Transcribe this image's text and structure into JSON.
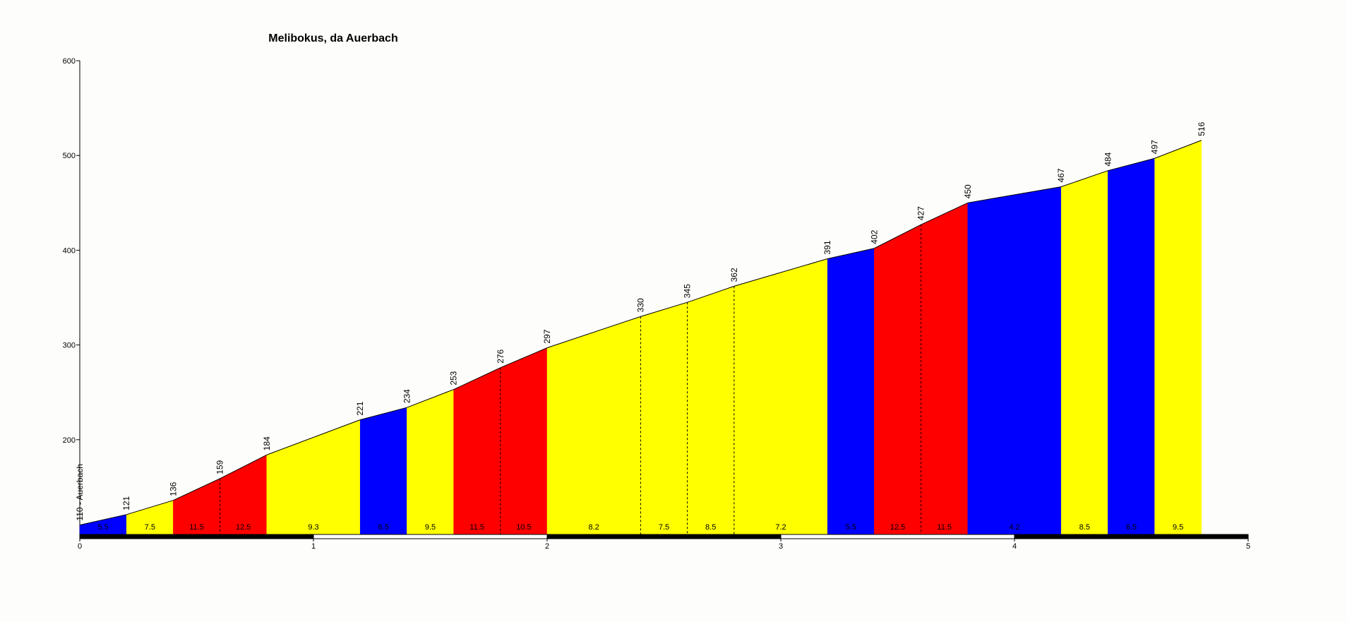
{
  "chart_data": {
    "type": "profile",
    "title": "Melibokus, da Auerbach",
    "x": [
      0,
      0.2,
      0.4,
      0.6,
      0.8,
      1.2,
      1.4,
      1.6,
      1.8,
      2.0,
      2.4,
      2.6,
      2.8,
      3.2,
      3.4,
      3.6,
      3.8,
      4.2,
      4.4,
      4.6,
      4.8
    ],
    "values": [
      110,
      121,
      136,
      159,
      184,
      221,
      234,
      253,
      276,
      297,
      330,
      345,
      362,
      391,
      402,
      427,
      450,
      467,
      484,
      497,
      516
    ],
    "value_labels": [
      "110 - Auerbach",
      "121",
      "136",
      "159",
      "184",
      "221",
      "234",
      "253",
      "276",
      "297",
      "330",
      "345",
      "362",
      "391",
      "402",
      "427",
      "450",
      "467",
      "484",
      "497",
      "516"
    ],
    "grades": [
      5.5,
      7.5,
      11.5,
      12.5,
      9.3,
      6.5,
      9.5,
      11.5,
      10.5,
      8.2,
      7.5,
      8.5,
      7.2,
      5.5,
      12.5,
      11.5,
      4.2,
      8.5,
      6.5,
      9.5
    ],
    "colors": [
      "#0000ff",
      "#ffff00",
      "#ff0000",
      "#ff0000",
      "#ffff00",
      "#0000ff",
      "#ffff00",
      "#ff0000",
      "#ff0000",
      "#ffff00",
      "#ffff00",
      "#ffff00",
      "#ffff00",
      "#0000ff",
      "#ff0000",
      "#ff0000",
      "#0000ff",
      "#ffff00",
      "#0000ff",
      "#ffff00"
    ],
    "xlim": [
      0,
      5
    ],
    "xticks": [
      0,
      1,
      2,
      3,
      4,
      5
    ],
    "ylim": [
      100,
      600
    ],
    "yticks": [
      200,
      300,
      400,
      500,
      600
    ]
  }
}
